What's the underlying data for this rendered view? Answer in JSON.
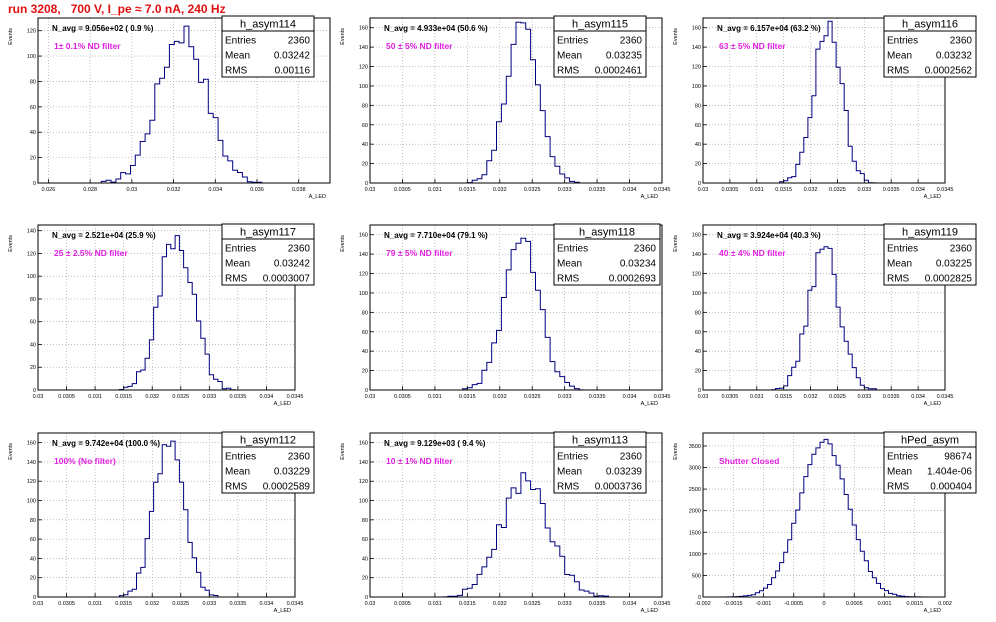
{
  "title": "run 3208,   700 V, I_pe ≈ 7.0 nA, 240 Hz",
  "colors": {
    "line": "#000080",
    "title": "#e01010",
    "filter_label": "#e020e0",
    "grid": "#999999"
  },
  "chart_data": [
    {
      "type": "bar",
      "name": "h_asym114",
      "ylabel": "Events",
      "xlabel": "A_LED",
      "annotation": "N_avg = 9.056e+02 ( 0.9 %)",
      "filter": "1± 0.1% ND filter",
      "stats": {
        "entries": "2360",
        "mean": "0.03242",
        "rms": "0.00116"
      },
      "xlim": [
        0.0255,
        0.0395
      ],
      "ylim": [
        0,
        130
      ],
      "xticks": [
        0.026,
        0.028,
        0.03,
        0.032,
        0.034,
        0.036,
        0.038
      ],
      "xtick_labels": [
        "0.026",
        "0.028",
        "0.03",
        "0.032",
        "0.034",
        "0.036",
        "0.038"
      ],
      "yticks": [
        0,
        20,
        40,
        60,
        80,
        100,
        120
      ],
      "ytick_labels": [
        "0",
        "20",
        "40",
        "60",
        "80",
        "100",
        "120"
      ],
      "mean": 0.03242,
      "sigma": 0.00116,
      "peak": 120,
      "entries": 2360
    },
    {
      "type": "bar",
      "name": "h_asym115",
      "ylabel": "Events",
      "xlabel": "A_LED",
      "annotation": "N_avg = 4.933e+04 (50.6 %)",
      "filter": "50 ± 5% ND filter",
      "stats": {
        "entries": "2360",
        "mean": "0.03235",
        "rms": "0.0002461"
      },
      "xlim": [
        0.03,
        0.0345
      ],
      "ylim": [
        0,
        170
      ],
      "xticks": [
        0.03,
        0.0305,
        0.031,
        0.0315,
        0.032,
        0.0325,
        0.033,
        0.0335,
        0.034,
        0.0345
      ],
      "xtick_labels": [
        "0.03",
        "0.0305",
        "0.031",
        "0.0315",
        "0.032",
        "0.0325",
        "0.033",
        "0.0335",
        "0.034",
        "0.0345"
      ],
      "yticks": [
        0,
        20,
        40,
        60,
        80,
        100,
        120,
        140,
        160
      ],
      "ytick_labels": [
        "0",
        "20",
        "40",
        "60",
        "80",
        "100",
        "120",
        "140",
        "160"
      ],
      "mean": 0.03235,
      "sigma": 0.0002461,
      "peak": 165,
      "entries": 2360
    },
    {
      "type": "bar",
      "name": "h_asym116",
      "ylabel": "Events",
      "xlabel": "A_LED",
      "annotation": "N_avg = 6.157e+04 (63.2 %)",
      "filter": "63 ± 5% ND filter",
      "stats": {
        "entries": "2360",
        "mean": "0.03232",
        "rms": "0.0002562"
      },
      "xlim": [
        0.03,
        0.0345
      ],
      "ylim": [
        0,
        170
      ],
      "xticks": [
        0.03,
        0.0305,
        0.031,
        0.0315,
        0.032,
        0.0325,
        0.033,
        0.0335,
        0.034,
        0.0345
      ],
      "xtick_labels": [
        "0.03",
        "0.0305",
        "0.031",
        "0.0315",
        "0.032",
        "0.0325",
        "0.033",
        "0.0335",
        "0.034",
        "0.0345"
      ],
      "yticks": [
        0,
        20,
        40,
        60,
        80,
        100,
        120,
        140,
        160
      ],
      "ytick_labels": [
        "0",
        "20",
        "40",
        "60",
        "80",
        "100",
        "120",
        "140",
        "160"
      ],
      "mean": 0.03232,
      "sigma": 0.0002562,
      "peak": 165,
      "entries": 2360
    },
    {
      "type": "bar",
      "name": "h_asym117",
      "ylabel": "Events",
      "xlabel": "A_LED",
      "annotation": "N_avg = 2.521e+04 (25.9 %)",
      "filter": "25 ± 2.5% ND filter",
      "stats": {
        "entries": "2360",
        "mean": "0.03242",
        "rms": "0.0003007"
      },
      "xlim": [
        0.03,
        0.0345
      ],
      "ylim": [
        0,
        145
      ],
      "xticks": [
        0.03,
        0.0305,
        0.031,
        0.0315,
        0.032,
        0.0325,
        0.033,
        0.0335,
        0.034,
        0.0345
      ],
      "xtick_labels": [
        "0.03",
        "0.0305",
        "0.031",
        "0.0315",
        "0.032",
        "0.0325",
        "0.033",
        "0.0335",
        "0.034",
        "0.0345"
      ],
      "yticks": [
        0,
        20,
        40,
        60,
        80,
        100,
        120,
        140
      ],
      "ytick_labels": [
        "0",
        "20",
        "40",
        "60",
        "80",
        "100",
        "120",
        "140"
      ],
      "mean": 0.03242,
      "sigma": 0.0003007,
      "peak": 137,
      "entries": 2360
    },
    {
      "type": "bar",
      "name": "h_asym118",
      "ylabel": "Events",
      "xlabel": "A_LED",
      "annotation": "N_avg = 7.710e+04 (79.1 %)",
      "filter": "79 ± 5% ND filter",
      "stats": {
        "entries": "2360",
        "mean": "0.03234",
        "rms": "0.0002693"
      },
      "xlim": [
        0.03,
        0.0345
      ],
      "ylim": [
        0,
        170
      ],
      "xticks": [
        0.03,
        0.0305,
        0.031,
        0.0315,
        0.032,
        0.0325,
        0.033,
        0.0335,
        0.034,
        0.0345
      ],
      "xtick_labels": [
        "0.03",
        "0.0305",
        "0.031",
        "0.0315",
        "0.032",
        "0.0325",
        "0.033",
        "0.0335",
        "0.034",
        "0.0345"
      ],
      "yticks": [
        0,
        20,
        40,
        60,
        80,
        100,
        120,
        140,
        160
      ],
      "ytick_labels": [
        "0",
        "20",
        "40",
        "60",
        "80",
        "100",
        "120",
        "140",
        "160"
      ],
      "mean": 0.03234,
      "sigma": 0.0002693,
      "peak": 162,
      "entries": 2360
    },
    {
      "type": "bar",
      "name": "h_asym119",
      "ylabel": "Events",
      "xlabel": "A_LED",
      "annotation": "N_avg = 3.924e+04 (40.3 %)",
      "filter": "40 ± 4% ND filter",
      "stats": {
        "entries": "2360",
        "mean": "0.03225",
        "rms": "0.0002825"
      },
      "xlim": [
        0.03,
        0.0345
      ],
      "ylim": [
        0,
        170
      ],
      "xticks": [
        0.03,
        0.0305,
        0.031,
        0.0315,
        0.032,
        0.0325,
        0.033,
        0.0335,
        0.034,
        0.0345
      ],
      "xtick_labels": [
        "0.03",
        "0.0305",
        "0.031",
        "0.0315",
        "0.032",
        "0.0325",
        "0.033",
        "0.0335",
        "0.034",
        "0.0345"
      ],
      "yticks": [
        0,
        20,
        40,
        60,
        80,
        100,
        120,
        140,
        160
      ],
      "ytick_labels": [
        "0",
        "20",
        "40",
        "60",
        "80",
        "100",
        "120",
        "140",
        "160"
      ],
      "mean": 0.03225,
      "sigma": 0.0002825,
      "peak": 145,
      "entries": 2360
    },
    {
      "type": "bar",
      "name": "h_asym112",
      "ylabel": "Events",
      "xlabel": "A_LED",
      "annotation": "N_avg = 9.742e+04 (100.0 %)",
      "filter": "100% (No filter)",
      "stats": {
        "entries": "2360",
        "mean": "0.03229",
        "rms": "0.0002589"
      },
      "xlim": [
        0.03,
        0.0345
      ],
      "ylim": [
        0,
        170
      ],
      "xticks": [
        0.03,
        0.0305,
        0.031,
        0.0315,
        0.032,
        0.0325,
        0.033,
        0.0335,
        0.034,
        0.0345
      ],
      "xtick_labels": [
        "0.03",
        "0.0305",
        "0.031",
        "0.0315",
        "0.032",
        "0.0325",
        "0.033",
        "0.0335",
        "0.034",
        "0.0345"
      ],
      "yticks": [
        0,
        20,
        40,
        60,
        80,
        100,
        120,
        140,
        160
      ],
      "ytick_labels": [
        "0",
        "20",
        "40",
        "60",
        "80",
        "100",
        "120",
        "140",
        "160"
      ],
      "mean": 0.03229,
      "sigma": 0.0002589,
      "peak": 160,
      "entries": 2360
    },
    {
      "type": "bar",
      "name": "h_asym113",
      "ylabel": "Events",
      "xlabel": "A_LED",
      "annotation": "N_avg = 9.129e+03 ( 9.4 %)",
      "filter": "10 ± 1% ND filter",
      "stats": {
        "entries": "2360",
        "mean": "0.03239",
        "rms": "0.0003736"
      },
      "xlim": [
        0.03,
        0.0345
      ],
      "ylim": [
        0,
        170
      ],
      "xticks": [
        0.03,
        0.0305,
        0.031,
        0.0315,
        0.032,
        0.0325,
        0.033,
        0.0335,
        0.034,
        0.0345
      ],
      "xtick_labels": [
        "0.03",
        "0.0305",
        "0.031",
        "0.0315",
        "0.032",
        "0.0325",
        "0.033",
        "0.0335",
        "0.034",
        "0.0345"
      ],
      "yticks": [
        0,
        20,
        40,
        60,
        80,
        100,
        120,
        140,
        160
      ],
      "ytick_labels": [
        "0",
        "20",
        "40",
        "60",
        "80",
        "100",
        "120",
        "140",
        "160"
      ],
      "mean": 0.03239,
      "sigma": 0.0003736,
      "peak": 120,
      "entries": 2360
    },
    {
      "type": "bar",
      "name": "hPed_asym",
      "ylabel": "Events",
      "xlabel": "A_LED",
      "annotation": "",
      "filter": "Shutter Closed",
      "stats": {
        "entries": "98674",
        "mean": "1.404e-06",
        "rms": "0.000404"
      },
      "xlim": [
        -0.002,
        0.002
      ],
      "ylim": [
        0,
        3800
      ],
      "xticks": [
        -0.002,
        -0.0015,
        -0.001,
        -0.0005,
        0,
        0.0005,
        0.001,
        0.0015,
        0.002
      ],
      "xtick_labels": [
        "-0.002",
        "-0.0015",
        "-0.001",
        "-0.0005",
        "0",
        "0.0005",
        "0.001",
        "0.0015",
        "0.002"
      ],
      "yticks": [
        0,
        500,
        1000,
        1500,
        2000,
        2500,
        3000,
        3500
      ],
      "ytick_labels": [
        "0",
        "500",
        "1000",
        "1500",
        "2000",
        "2500",
        "3000",
        "3500"
      ],
      "mean": 1.4e-06,
      "sigma": 0.000404,
      "peak": 3620,
      "entries": 98674
    }
  ]
}
